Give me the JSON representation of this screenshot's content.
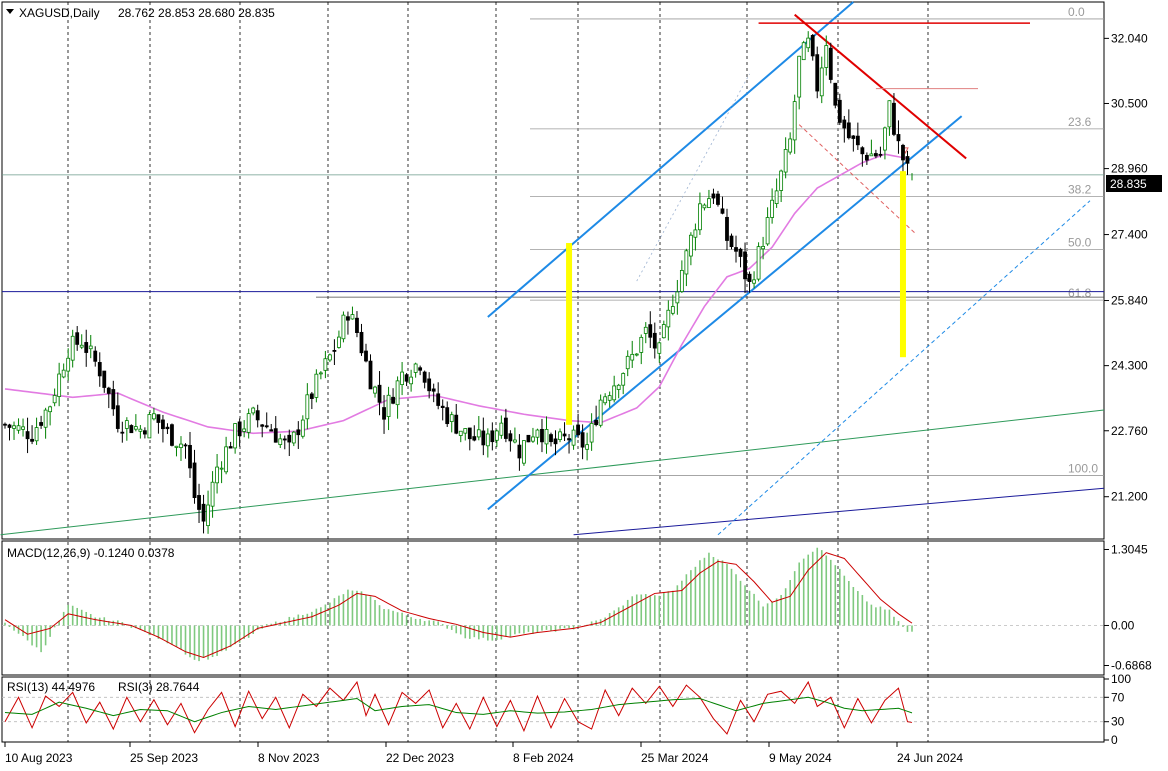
{
  "header": {
    "symbol": "XAGUSD,Daily",
    "ohlc": "28.762 28.853 28.680 28.835"
  },
  "colors": {
    "bull": "#008000",
    "bear": "#000000",
    "ma": "#e27be2",
    "channel": "#1e8ae6",
    "resistance": "#e00000",
    "trend_green": "#2e9a5a",
    "trend_navy": "#1a1a9a",
    "highlight": "#ffff00",
    "fib": "#9a9a9a",
    "macd_hist": "#7fc97f",
    "macd_signal": "#cc0000",
    "rsi13": "#008000",
    "rsi3": "#cc0000"
  },
  "macd_label": "MACD(12,26,9) -0.1240 0.0378",
  "rsi_label_13": "RSI(13) 44.4976",
  "rsi_label_3": "RSI(3) 28.7644",
  "price_badge": "28.835",
  "chart_data": {
    "type": "candlestick",
    "symbol": "XAGUSD",
    "timeframe": "Daily",
    "last": {
      "open": 28.762,
      "high": 28.853,
      "low": 28.68,
      "close": 28.835
    },
    "x_ticks": [
      "10 Aug 2023",
      "25 Sep 2023",
      "8 Nov 2023",
      "22 Dec 2023",
      "8 Feb 2024",
      "25 Mar 2024",
      "9 May 2024",
      "24 Jun 2024"
    ],
    "y_ticks": [
      "32.040",
      "30.500",
      "28.960",
      "27.400",
      "25.840",
      "24.300",
      "22.760",
      "21.200"
    ],
    "ylim": [
      20.2,
      32.9
    ],
    "close_path": [
      [
        0,
        22.9
      ],
      [
        6,
        22.7
      ],
      [
        10,
        23.4
      ],
      [
        14,
        24.7
      ],
      [
        17,
        24.9
      ],
      [
        21,
        24.2
      ],
      [
        25,
        23.0
      ],
      [
        30,
        22.8
      ],
      [
        33,
        23.1
      ],
      [
        36,
        22.7
      ],
      [
        40,
        22.4
      ],
      [
        42,
        21.2
      ],
      [
        44,
        20.6
      ],
      [
        47,
        21.9
      ],
      [
        51,
        22.7
      ],
      [
        55,
        23.1
      ],
      [
        59,
        22.8
      ],
      [
        63,
        22.3
      ],
      [
        67,
        23.4
      ],
      [
        70,
        24.1
      ],
      [
        73,
        24.7
      ],
      [
        76,
        25.6
      ],
      [
        78,
        25.1
      ],
      [
        81,
        24.0
      ],
      [
        84,
        23.2
      ],
      [
        88,
        24.1
      ],
      [
        92,
        24.4
      ],
      [
        95,
        23.5
      ],
      [
        99,
        23.0
      ],
      [
        103,
        22.6
      ],
      [
        107,
        22.5
      ],
      [
        110,
        23.0
      ],
      [
        114,
        22.3
      ],
      [
        118,
        22.9
      ],
      [
        121,
        22.4
      ],
      [
        125,
        22.6
      ],
      [
        129,
        22.4
      ],
      [
        132,
        23.5
      ],
      [
        135,
        23.9
      ],
      [
        139,
        24.5
      ],
      [
        142,
        25.1
      ],
      [
        145,
        24.6
      ],
      [
        148,
        25.9
      ],
      [
        151,
        26.9
      ],
      [
        154,
        28.1
      ],
      [
        157,
        28.4
      ],
      [
        160,
        27.3
      ],
      [
        162,
        27.0
      ],
      [
        165,
        26.2
      ],
      [
        168,
        27.3
      ],
      [
        171,
        28.4
      ],
      [
        174,
        29.6
      ],
      [
        176,
        31.5
      ],
      [
        178,
        31.9
      ],
      [
        180,
        30.9
      ],
      [
        182,
        32.0
      ],
      [
        184,
        30.4
      ],
      [
        187,
        29.7
      ],
      [
        190,
        29.3
      ],
      [
        194,
        29.3
      ],
      [
        196,
        30.4
      ],
      [
        198,
        29.5
      ],
      [
        200,
        28.9
      ],
      [
        201,
        28.835
      ]
    ],
    "moving_average": [
      [
        0,
        23.75
      ],
      [
        15,
        23.55
      ],
      [
        25,
        23.65
      ],
      [
        35,
        23.2
      ],
      [
        45,
        22.85
      ],
      [
        55,
        22.7
      ],
      [
        65,
        22.75
      ],
      [
        75,
        23.0
      ],
      [
        85,
        23.5
      ],
      [
        95,
        23.6
      ],
      [
        105,
        23.35
      ],
      [
        115,
        23.15
      ],
      [
        125,
        23.0
      ],
      [
        132,
        22.95
      ],
      [
        140,
        23.3
      ],
      [
        145,
        23.8
      ],
      [
        150,
        24.8
      ],
      [
        155,
        25.7
      ],
      [
        160,
        26.4
      ],
      [
        165,
        26.6
      ],
      [
        170,
        27.1
      ],
      [
        175,
        27.9
      ],
      [
        180,
        28.5
      ],
      [
        185,
        28.8
      ],
      [
        190,
        29.1
      ],
      [
        195,
        29.3
      ],
      [
        200,
        29.2
      ]
    ],
    "fibonacci_levels": [
      {
        "label": "0.0",
        "price": 32.5
      },
      {
        "label": "23.6",
        "price": 29.9
      },
      {
        "label": "38.2",
        "price": 28.3
      },
      {
        "label": "50.0",
        "price": 27.05
      },
      {
        "label": "61.8",
        "price": 25.85
      },
      {
        "label": "100.0",
        "price": 21.7
      }
    ],
    "macd": {
      "ylim": [
        -0.85,
        1.45
      ],
      "ticks": [
        "1.3045",
        "0.00",
        "-0.6868"
      ],
      "value": -0.124,
      "signal": 0.0378,
      "histogram": [
        [
          0,
          0.05
        ],
        [
          4,
          -0.2
        ],
        [
          8,
          -0.45
        ],
        [
          14,
          0.35
        ],
        [
          20,
          0.15
        ],
        [
          26,
          0.05
        ],
        [
          32,
          -0.15
        ],
        [
          38,
          -0.35
        ],
        [
          42,
          -0.6
        ],
        [
          46,
          -0.55
        ],
        [
          52,
          -0.3
        ],
        [
          58,
          0.0
        ],
        [
          64,
          0.15
        ],
        [
          70,
          0.3
        ],
        [
          76,
          0.6
        ],
        [
          80,
          0.55
        ],
        [
          84,
          0.3
        ],
        [
          90,
          0.15
        ],
        [
          96,
          0.05
        ],
        [
          102,
          -0.2
        ],
        [
          108,
          -0.25
        ],
        [
          114,
          -0.15
        ],
        [
          120,
          -0.1
        ],
        [
          126,
          -0.05
        ],
        [
          132,
          0.1
        ],
        [
          136,
          0.3
        ],
        [
          140,
          0.55
        ],
        [
          144,
          0.5
        ],
        [
          148,
          0.6
        ],
        [
          152,
          0.95
        ],
        [
          156,
          1.25
        ],
        [
          160,
          1.05
        ],
        [
          164,
          0.7
        ],
        [
          168,
          0.35
        ],
        [
          172,
          0.5
        ],
        [
          176,
          1.1
        ],
        [
          180,
          1.35
        ],
        [
          184,
          1.05
        ],
        [
          188,
          0.65
        ],
        [
          192,
          0.35
        ],
        [
          196,
          0.25
        ],
        [
          200,
          -0.12
        ]
      ],
      "signal_line": [
        [
          0,
          0.1
        ],
        [
          5,
          -0.15
        ],
        [
          10,
          -0.05
        ],
        [
          14,
          0.2
        ],
        [
          20,
          0.1
        ],
        [
          28,
          0.0
        ],
        [
          34,
          -0.2
        ],
        [
          40,
          -0.45
        ],
        [
          44,
          -0.55
        ],
        [
          50,
          -0.35
        ],
        [
          56,
          -0.05
        ],
        [
          62,
          0.05
        ],
        [
          68,
          0.15
        ],
        [
          74,
          0.35
        ],
        [
          78,
          0.55
        ],
        [
          82,
          0.5
        ],
        [
          88,
          0.25
        ],
        [
          94,
          0.12
        ],
        [
          100,
          0.02
        ],
        [
          106,
          -0.12
        ],
        [
          112,
          -0.2
        ],
        [
          118,
          -0.12
        ],
        [
          126,
          -0.05
        ],
        [
          132,
          0.05
        ],
        [
          138,
          0.3
        ],
        [
          144,
          0.55
        ],
        [
          150,
          0.6
        ],
        [
          154,
          0.9
        ],
        [
          158,
          1.1
        ],
        [
          162,
          1.05
        ],
        [
          166,
          0.75
        ],
        [
          170,
          0.4
        ],
        [
          174,
          0.5
        ],
        [
          178,
          0.95
        ],
        [
          182,
          1.25
        ],
        [
          186,
          1.15
        ],
        [
          190,
          0.8
        ],
        [
          194,
          0.45
        ],
        [
          198,
          0.2
        ],
        [
          201,
          0.04
        ]
      ]
    },
    "rsi": {
      "ylim": [
        0,
        100
      ],
      "ticks": [
        "100",
        "70",
        "30",
        "0"
      ],
      "rsi13": [
        [
          0,
          45
        ],
        [
          6,
          42
        ],
        [
          12,
          62
        ],
        [
          18,
          52
        ],
        [
          24,
          40
        ],
        [
          30,
          50
        ],
        [
          36,
          48
        ],
        [
          42,
          30
        ],
        [
          48,
          45
        ],
        [
          54,
          55
        ],
        [
          60,
          50
        ],
        [
          66,
          56
        ],
        [
          72,
          62
        ],
        [
          78,
          68
        ],
        [
          82,
          48
        ],
        [
          88,
          55
        ],
        [
          94,
          58
        ],
        [
          100,
          45
        ],
        [
          106,
          42
        ],
        [
          112,
          48
        ],
        [
          118,
          44
        ],
        [
          124,
          46
        ],
        [
          130,
          50
        ],
        [
          136,
          58
        ],
        [
          142,
          62
        ],
        [
          148,
          66
        ],
        [
          154,
          68
        ],
        [
          158,
          58
        ],
        [
          162,
          48
        ],
        [
          168,
          60
        ],
        [
          174,
          66
        ],
        [
          178,
          70
        ],
        [
          182,
          62
        ],
        [
          186,
          52
        ],
        [
          190,
          48
        ],
        [
          194,
          50
        ],
        [
          198,
          52
        ],
        [
          201,
          44.5
        ]
      ],
      "rsi3": [
        [
          0,
          30
        ],
        [
          3,
          70
        ],
        [
          6,
          20
        ],
        [
          9,
          72
        ],
        [
          12,
          55
        ],
        [
          15,
          78
        ],
        [
          18,
          28
        ],
        [
          21,
          62
        ],
        [
          24,
          18
        ],
        [
          27,
          70
        ],
        [
          30,
          30
        ],
        [
          33,
          66
        ],
        [
          36,
          25
        ],
        [
          39,
          60
        ],
        [
          42,
          12
        ],
        [
          45,
          50
        ],
        [
          48,
          78
        ],
        [
          51,
          22
        ],
        [
          54,
          80
        ],
        [
          57,
          35
        ],
        [
          60,
          70
        ],
        [
          63,
          20
        ],
        [
          66,
          75
        ],
        [
          69,
          55
        ],
        [
          72,
          85
        ],
        [
          75,
          65
        ],
        [
          78,
          95
        ],
        [
          80,
          40
        ],
        [
          82,
          75
        ],
        [
          85,
          25
        ],
        [
          88,
          78
        ],
        [
          91,
          60
        ],
        [
          94,
          82
        ],
        [
          97,
          20
        ],
        [
          100,
          60
        ],
        [
          103,
          18
        ],
        [
          106,
          70
        ],
        [
          109,
          22
        ],
        [
          112,
          65
        ],
        [
          115,
          15
        ],
        [
          118,
          72
        ],
        [
          121,
          20
        ],
        [
          124,
          68
        ],
        [
          127,
          30
        ],
        [
          130,
          18
        ],
        [
          133,
          82
        ],
        [
          136,
          40
        ],
        [
          139,
          85
        ],
        [
          142,
          60
        ],
        [
          145,
          88
        ],
        [
          148,
          55
        ],
        [
          151,
          90
        ],
        [
          154,
          70
        ],
        [
          157,
          35
        ],
        [
          160,
          10
        ],
        [
          163,
          65
        ],
        [
          166,
          30
        ],
        [
          169,
          75
        ],
        [
          172,
          80
        ],
        [
          175,
          60
        ],
        [
          178,
          95
        ],
        [
          180,
          55
        ],
        [
          183,
          70
        ],
        [
          186,
          20
        ],
        [
          189,
          68
        ],
        [
          192,
          28
        ],
        [
          195,
          65
        ],
        [
          198,
          85
        ],
        [
          200,
          30
        ],
        [
          201,
          28.8
        ]
      ]
    }
  }
}
